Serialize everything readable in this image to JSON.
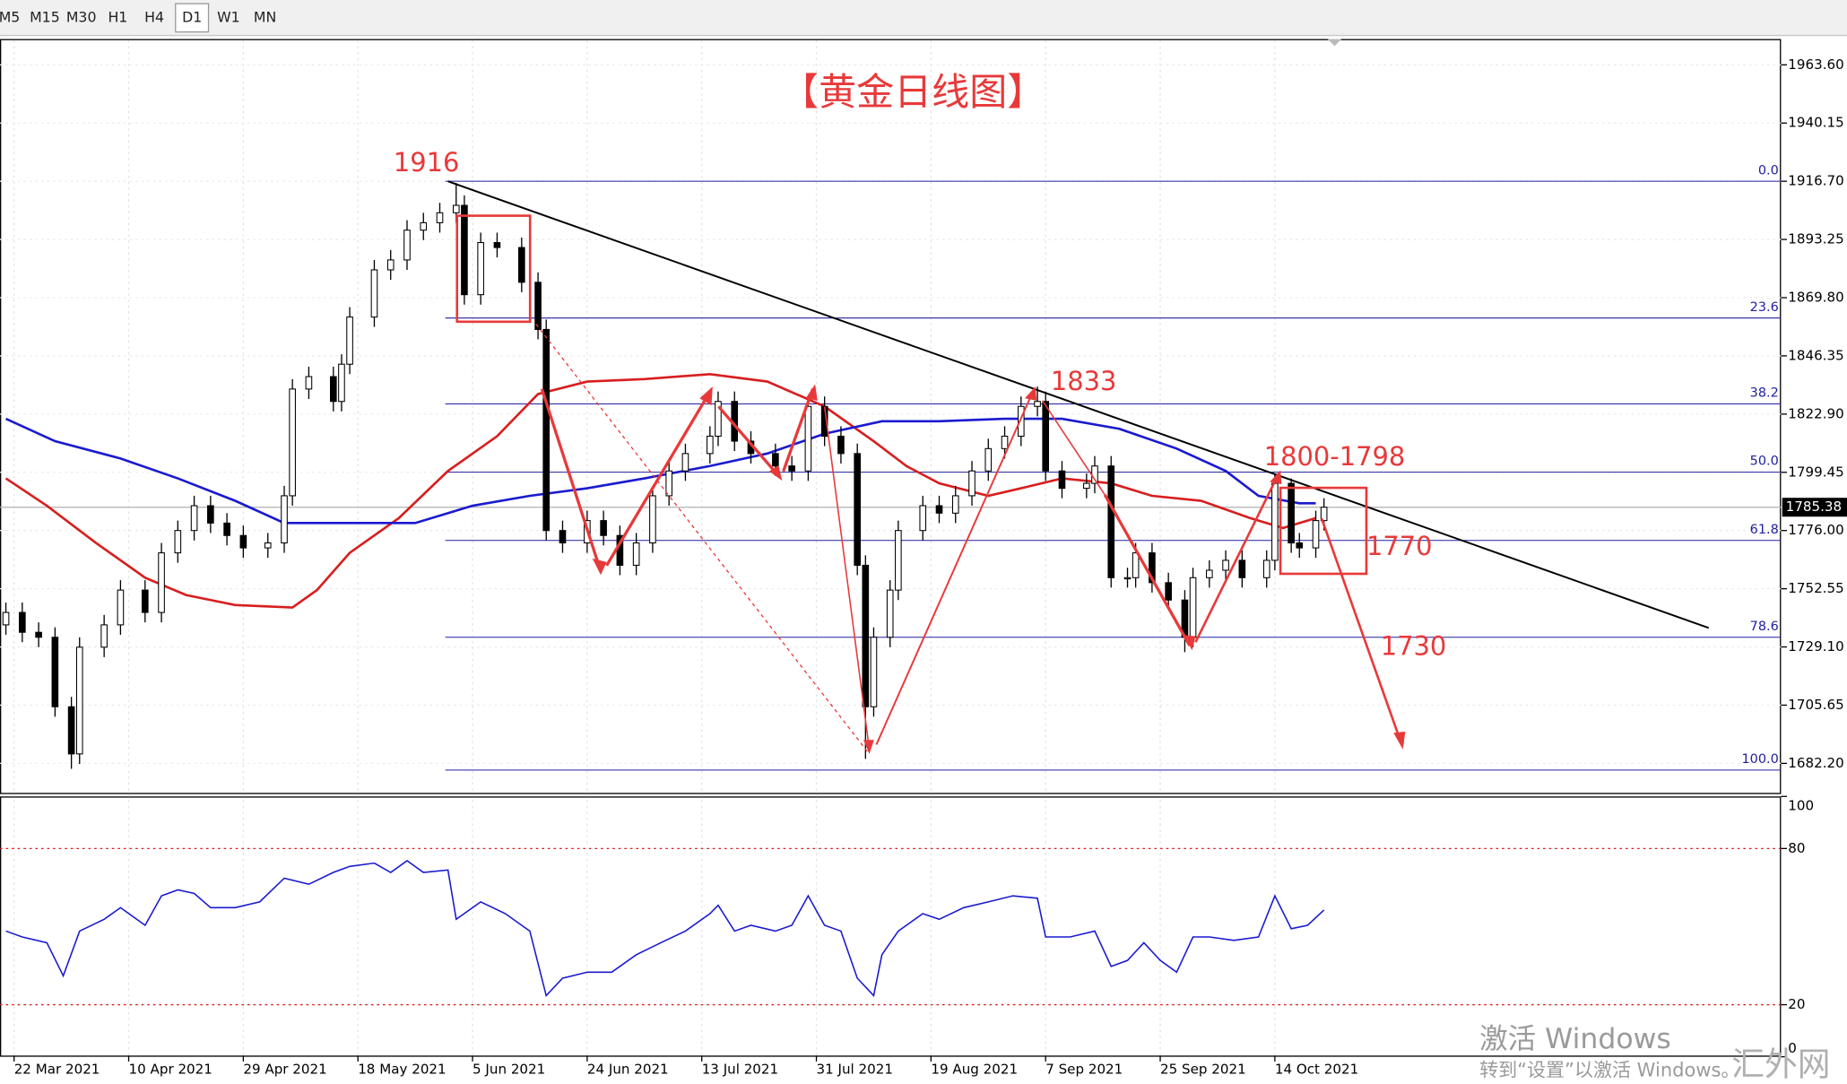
{
  "toolbar": {
    "timeframes": [
      "M5",
      "M15",
      "M30",
      "H1",
      "H4",
      "D1",
      "W1",
      "MN"
    ],
    "active": "D1"
  },
  "watermark": {
    "line1": "激活 Windows",
    "line2": "转到“设置”以激活 Windows。",
    "logo": "汇外网"
  },
  "chart_data": [
    {
      "type": "candlestick",
      "title": "【黄金日线图】",
      "x": [
        0,
        2,
        4,
        6,
        8,
        9,
        12,
        14,
        17,
        19,
        21,
        23,
        25,
        27,
        29,
        32,
        34,
        35,
        37,
        40,
        41,
        42,
        45,
        47,
        49,
        51,
        53,
        55,
        56,
        58,
        60,
        63,
        65,
        66,
        68,
        71,
        73,
        75,
        77,
        79,
        81,
        83,
        86,
        87,
        89,
        91,
        94,
        96,
        98,
        100,
        102,
        104,
        105,
        106,
        108,
        109,
        112,
        114,
        116,
        118,
        120,
        122,
        124,
        126,
        127,
        129,
        132,
        133,
        135,
        137,
        138,
        140,
        142,
        144,
        145,
        147,
        149,
        151,
        154,
        155,
        157,
        158,
        160,
        161
      ],
      "open": [
        1738,
        1743,
        1735,
        1733,
        1705,
        1686,
        1729,
        1738,
        1752,
        1743,
        1767,
        1776,
        1786,
        1779,
        1774,
        1769,
        1771,
        1790,
        1833,
        1838,
        1828,
        1843,
        1862,
        1881,
        1885,
        1897,
        1900,
        1904,
        1907,
        1871,
        1892,
        1890,
        1876,
        1857,
        1776,
        1771,
        1780,
        1774,
        1762,
        1771,
        1790,
        1800,
        1807,
        1814,
        1828,
        1812,
        1807,
        1802,
        1800,
        1826,
        1814,
        1807,
        1762,
        1705,
        1733,
        1752,
        1776,
        1786,
        1783,
        1790,
        1800,
        1809,
        1814,
        1826,
        1828,
        1800,
        1793,
        1795,
        1802,
        1757,
        1757,
        1767,
        1755,
        1748,
        1733,
        1757,
        1760,
        1764,
        1757,
        1764,
        1795,
        1771,
        1769,
        1780
      ],
      "high": [
        1747,
        1747,
        1739,
        1737,
        1709,
        1733,
        1742,
        1756,
        1756,
        1771,
        1780,
        1790,
        1790,
        1783,
        1778,
        1775,
        1794,
        1837,
        1842,
        1842,
        1847,
        1866,
        1885,
        1889,
        1901,
        1904,
        1908,
        1916,
        1911,
        1896,
        1896,
        1894,
        1880,
        1861,
        1780,
        1784,
        1784,
        1778,
        1775,
        1794,
        1804,
        1811,
        1818,
        1832,
        1832,
        1816,
        1811,
        1806,
        1830,
        1830,
        1818,
        1811,
        1766,
        1737,
        1756,
        1780,
        1790,
        1790,
        1794,
        1804,
        1813,
        1818,
        1830,
        1834,
        1832,
        1804,
        1799,
        1806,
        1806,
        1761,
        1771,
        1771,
        1759,
        1752,
        1761,
        1764,
        1768,
        1768,
        1768,
        1798.5,
        1797,
        1775,
        1784,
        1789
      ],
      "low": [
        1734,
        1731,
        1729,
        1701,
        1680,
        1682,
        1725,
        1734,
        1739,
        1739,
        1763,
        1772,
        1775,
        1770,
        1765,
        1765,
        1767,
        1786,
        1829,
        1824,
        1824,
        1839,
        1858,
        1877,
        1881,
        1893,
        1896,
        1900,
        1867,
        1867,
        1886,
        1872,
        1853,
        1772,
        1767,
        1767,
        1770,
        1758,
        1758,
        1767,
        1786,
        1796,
        1803,
        1810,
        1808,
        1803,
        1798,
        1796,
        1796,
        1810,
        1803,
        1758,
        1684,
        1701,
        1729,
        1748,
        1772,
        1779,
        1779,
        1786,
        1796,
        1805,
        1810,
        1822,
        1796,
        1789,
        1789,
        1791,
        1753,
        1753,
        1753,
        1751,
        1744,
        1727,
        1729,
        1753,
        1756,
        1753,
        1753,
        1760,
        1767,
        1765,
        1765,
        1776
      ],
      "close": [
        1743,
        1735,
        1733,
        1705,
        1686,
        1729,
        1738,
        1752,
        1743,
        1767,
        1776,
        1786,
        1779,
        1774,
        1769,
        1771,
        1790,
        1833,
        1838,
        1828,
        1843,
        1862,
        1881,
        1885,
        1897,
        1900,
        1904,
        1907,
        1871,
        1892,
        1890,
        1876,
        1857,
        1776,
        1771,
        1780,
        1774,
        1762,
        1771,
        1790,
        1800,
        1807,
        1814,
        1828,
        1812,
        1807,
        1802,
        1800,
        1826,
        1814,
        1807,
        1762,
        1705,
        1733,
        1752,
        1776,
        1786,
        1783,
        1790,
        1800,
        1809,
        1814,
        1826,
        1828,
        1800,
        1793,
        1795,
        1802,
        1757,
        1757,
        1767,
        1755,
        1748,
        1733,
        1757,
        1760,
        1764,
        1757,
        1764,
        1795,
        1771,
        1769,
        1780,
        1785.38
      ],
      "series": [
        {
          "color": "#d81e1e",
          "x": [
            0,
            5,
            11,
            17,
            22,
            28,
            35,
            38,
            42,
            48,
            54,
            60,
            65,
            71,
            78,
            86,
            93,
            100,
            106,
            110,
            114,
            120,
            124,
            129,
            135,
            140,
            146,
            152,
            156,
            160
          ],
          "values": [
            1797,
            1786,
            1771,
            1757,
            1750,
            1746,
            1745,
            1752,
            1767,
            1781,
            1800,
            1814,
            1831,
            1836,
            1837,
            1839,
            1836,
            1826,
            1812,
            1802,
            1795,
            1790,
            1793,
            1797,
            1795,
            1790,
            1788,
            1781,
            1777,
            1781
          ]
        },
        {
          "color": "#1a1ad0",
          "x": [
            0,
            6,
            14,
            21,
            28,
            34,
            42,
            50,
            57,
            64,
            71,
            78,
            86,
            93,
            100,
            107,
            114,
            122,
            129,
            136,
            143,
            149,
            153,
            158,
            160
          ],
          "values": [
            1821,
            1812,
            1805,
            1797,
            1788,
            1779,
            1779,
            1779,
            1786,
            1790,
            1793,
            1797,
            1802,
            1807,
            1815,
            1820,
            1820,
            1821,
            1821,
            1817,
            1809,
            1800,
            1790,
            1787,
            1787
          ]
        }
      ],
      "levels": [
        {
          "label": "0.0",
          "value": 1916.7
        },
        {
          "label": "23.6",
          "value": 1861.6
        },
        {
          "label": "38.2",
          "value": 1827.0
        },
        {
          "label": "50.0",
          "value": 1799.5
        },
        {
          "label": "61.8",
          "value": 1772.0
        },
        {
          "label": "78.6",
          "value": 1733.0
        },
        {
          "label": "100.0",
          "value": 1679.5
        }
      ],
      "level_color": "#2020a0",
      "trendline": {
        "x": [
          54,
          208
        ],
        "y": [
          1916.7,
          1736.8
        ]
      },
      "current_price": 1785.38,
      "annotations": [
        "1916",
        "1833",
        "1800-1798",
        "1770",
        "1730"
      ],
      "xlim": [
        -0.72,
        216.83
      ],
      "ylim": [
        1670.3,
        1974.0
      ],
      "xticks": [
        {
          "value": 1,
          "label": "22 Mar 2021"
        },
        {
          "value": 15,
          "label": "10 Apr 2021"
        },
        {
          "value": 29,
          "label": "29 Apr 2021"
        },
        {
          "value": 43,
          "label": "18 May 2021"
        },
        {
          "value": 57,
          "label": "5 Jun 2021"
        },
        {
          "value": 71,
          "label": "24 Jun 2021"
        },
        {
          "value": 85,
          "label": "13 Jul 2021"
        },
        {
          "value": 99,
          "label": "31 Jul 2021"
        },
        {
          "value": 113,
          "label": "19 Aug 2021"
        },
        {
          "value": 127,
          "label": "7 Sep 2021"
        },
        {
          "value": 141,
          "label": "25 Sep 2021"
        },
        {
          "value": 155,
          "label": "14 Oct 2021"
        }
      ],
      "yticks": [
        {
          "value": 1963.6,
          "label": "1963.60"
        },
        {
          "value": 1940.15,
          "label": "1940.15"
        },
        {
          "value": 1916.7,
          "label": "1916.70"
        },
        {
          "value": 1893.25,
          "label": "1893.25"
        },
        {
          "value": 1869.8,
          "label": "1869.80"
        },
        {
          "value": 1846.35,
          "label": "1846.35"
        },
        {
          "value": 1822.9,
          "label": "1822.90"
        },
        {
          "value": 1799.45,
          "label": "1799.45"
        },
        {
          "value": 1776,
          "label": "1776.00"
        },
        {
          "value": 1752.55,
          "label": "1752.55"
        },
        {
          "value": 1729.1,
          "label": "1729.10"
        },
        {
          "value": 1705.65,
          "label": "1705.65"
        },
        {
          "value": 1682.2,
          "label": "1682.20"
        }
      ],
      "grid": true
    },
    {
      "type": "line",
      "x": [
        0,
        2,
        5,
        7,
        9,
        12,
        14,
        17,
        19,
        21,
        23,
        25,
        28,
        31,
        34,
        37,
        40,
        42,
        45,
        47,
        49,
        51,
        54,
        55,
        58,
        61,
        64,
        66,
        68,
        71,
        74,
        77,
        80,
        83,
        86,
        87,
        89,
        91,
        94,
        96,
        98,
        100,
        102,
        104,
        106,
        107,
        109,
        112,
        114,
        117,
        120,
        123,
        126,
        127,
        130,
        133,
        135,
        137,
        139,
        141,
        143,
        145,
        147,
        150,
        153,
        155,
        157,
        159,
        161
      ],
      "values": [
        48.3,
        46,
        43.8,
        31.1,
        48.3,
        52.8,
        57.3,
        50.5,
        61.8,
        64.1,
        62.7,
        57.3,
        57.3,
        59.5,
        68.6,
        66.3,
        70.8,
        73.1,
        74.4,
        70.8,
        75.3,
        70.8,
        71.7,
        52.8,
        59.5,
        55,
        48.3,
        23.5,
        30.2,
        32.5,
        32.5,
        39.2,
        43.8,
        48.3,
        55,
        58.2,
        48.3,
        50.5,
        48.3,
        50.5,
        61.8,
        50.5,
        48.3,
        30.2,
        23.5,
        39.2,
        48.3,
        55,
        52.8,
        57.3,
        59.5,
        61.8,
        60.9,
        46,
        46,
        48.3,
        34.7,
        37,
        43.8,
        37,
        32.5,
        46,
        46,
        44.7,
        46,
        61.8,
        49.2,
        50.5,
        56.4
      ],
      "color": "#1a1ad0",
      "levels": [
        80,
        20
      ],
      "level_color": "#d81e1e",
      "xlim": [
        -0.72,
        216.83
      ],
      "ylim": [
        0,
        100
      ],
      "yticks": [
        100,
        80,
        20,
        0
      ]
    }
  ]
}
